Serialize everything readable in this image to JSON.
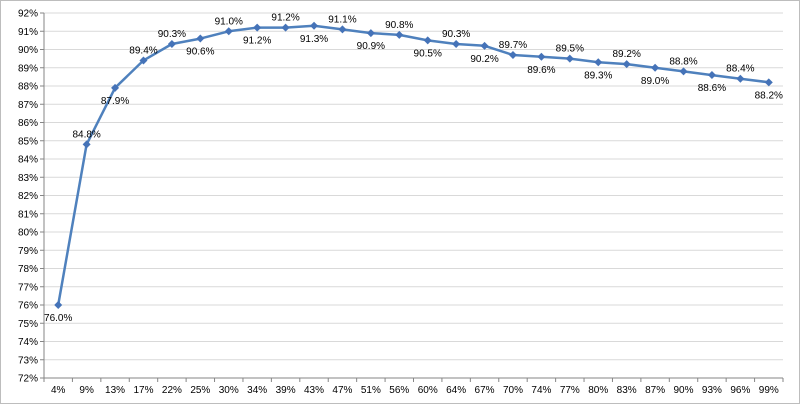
{
  "chart_data": {
    "type": "line",
    "title": "",
    "xlabel": "",
    "ylabel": "",
    "categories": [
      "4%",
      "9%",
      "13%",
      "17%",
      "22%",
      "25%",
      "30%",
      "34%",
      "39%",
      "43%",
      "47%",
      "51%",
      "56%",
      "60%",
      "64%",
      "67%",
      "70%",
      "74%",
      "77%",
      "80%",
      "83%",
      "87%",
      "90%",
      "93%",
      "96%",
      "99%"
    ],
    "series": [
      {
        "values": [
          76.0,
          84.8,
          87.9,
          89.4,
          90.3,
          90.6,
          91.0,
          91.2,
          91.2,
          91.3,
          91.1,
          90.9,
          90.8,
          90.5,
          90.3,
          90.2,
          89.7,
          89.6,
          89.5,
          89.3,
          89.2,
          89.0,
          88.8,
          88.6,
          88.4,
          88.2
        ],
        "labels": [
          "76.0%",
          "84.8%",
          "87.9%",
          "89.4%",
          "90.3%",
          "90.6%",
          "91.0%",
          "91.2%",
          "91.2%",
          "91.3%",
          "91.1%",
          "90.9%",
          "90.8%",
          "90.5%",
          "90.3%",
          "90.2%",
          "89.7%",
          "89.6%",
          "89.5%",
          "89.3%",
          "89.2%",
          "89.0%",
          "88.8%",
          "88.6%",
          "88.4%",
          "88.2%"
        ],
        "label_side": [
          "below",
          "above",
          "below",
          "above",
          "above",
          "below",
          "above",
          "below",
          "above",
          "below",
          "above",
          "below",
          "above",
          "below",
          "above",
          "below",
          "above",
          "below",
          "above",
          "below",
          "above",
          "below",
          "above",
          "below",
          "above",
          "below"
        ]
      }
    ],
    "ylim": [
      72,
      92
    ],
    "y_ticks": [
      "72%",
      "73%",
      "74%",
      "75%",
      "76%",
      "77%",
      "78%",
      "79%",
      "80%",
      "81%",
      "82%",
      "83%",
      "84%",
      "85%",
      "86%",
      "87%",
      "88%",
      "89%",
      "90%",
      "91%",
      "92%"
    ],
    "grid": "horizontal",
    "legend": "none",
    "colors": {
      "line": "#4f81bd",
      "marker": "#4573b8",
      "grid": "#d9d9d9",
      "axis": "#868686"
    }
  }
}
